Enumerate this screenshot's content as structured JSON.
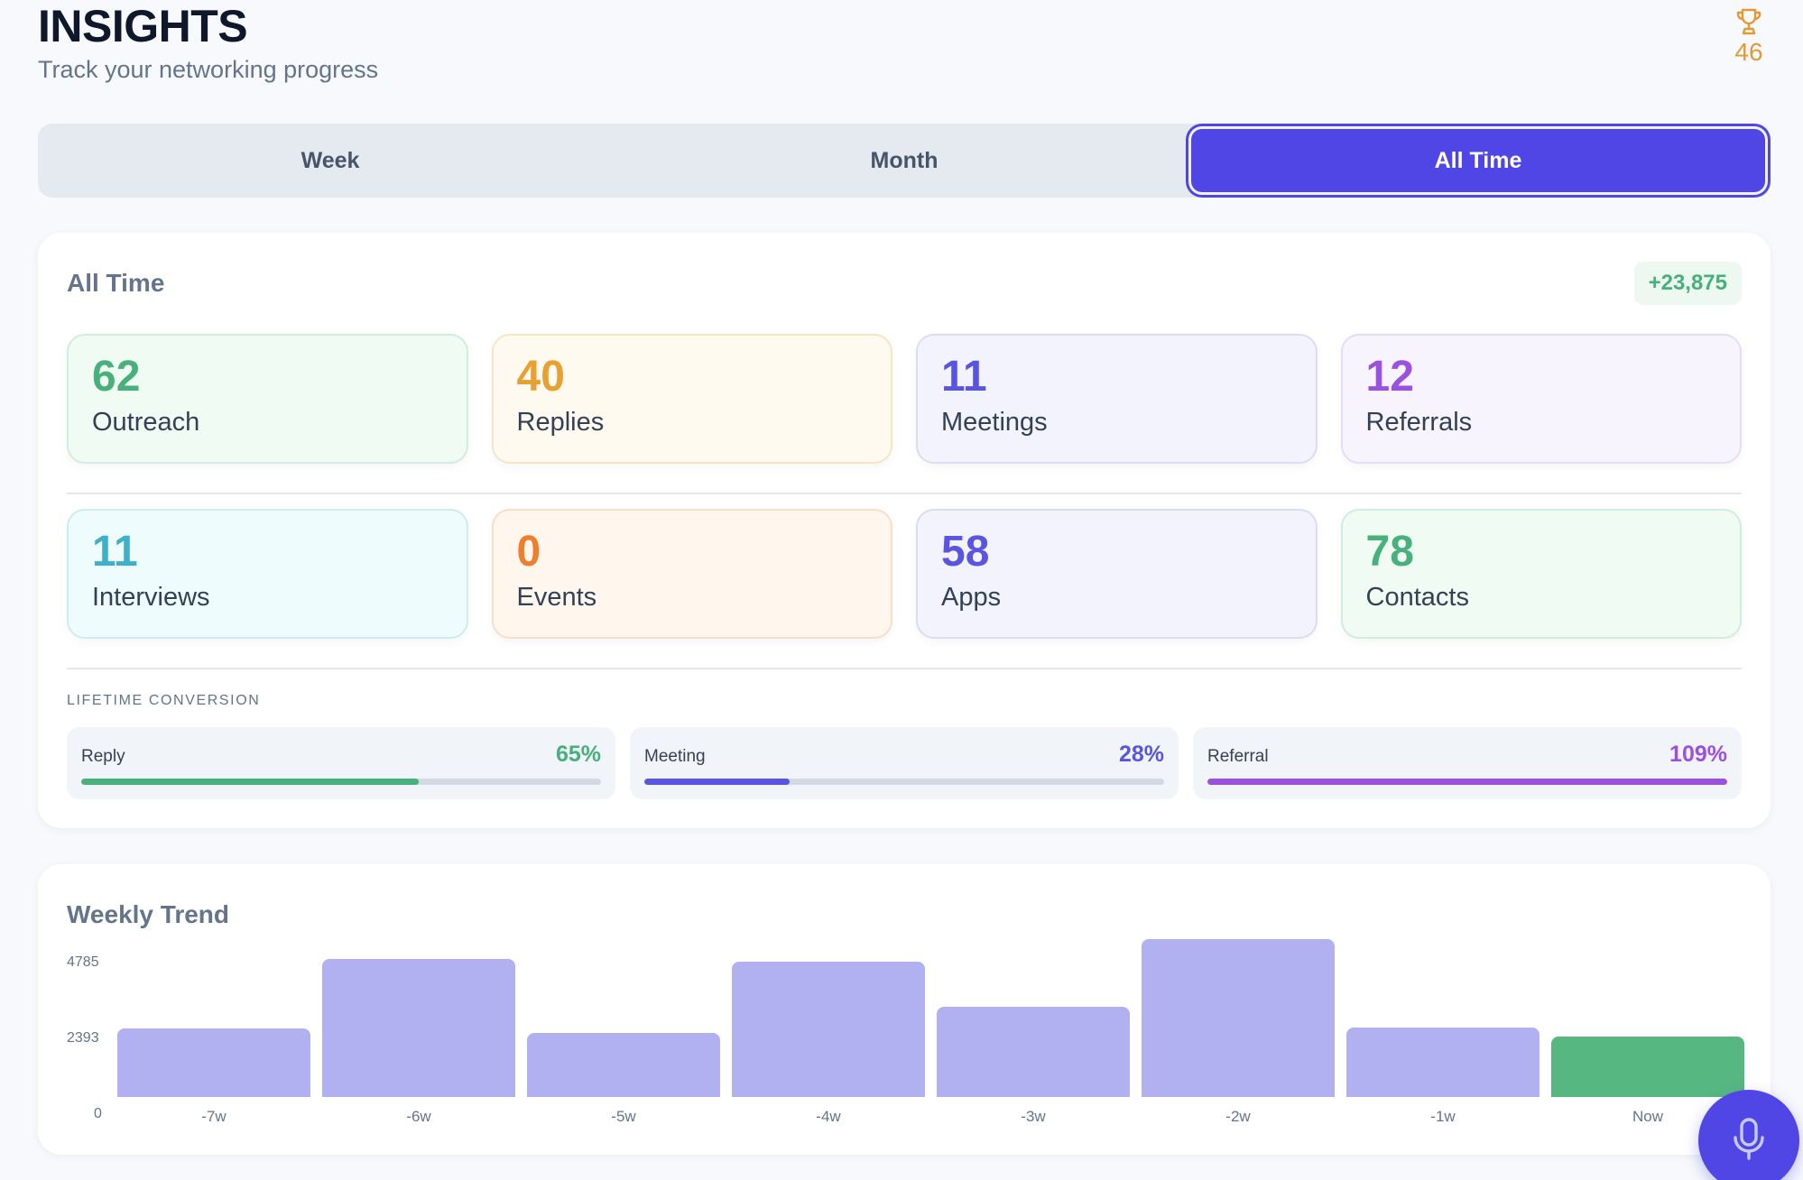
{
  "header": {
    "title": "INSIGHTS",
    "subtitle": "Track your networking progress",
    "trophy_count": "46"
  },
  "tabs": [
    {
      "label": "Week",
      "active": false
    },
    {
      "label": "Month",
      "active": false
    },
    {
      "label": "All Time",
      "active": true
    }
  ],
  "summary": {
    "title": "All Time",
    "delta": "+23,875",
    "stats": [
      {
        "value": "62",
        "label": "Outreach",
        "color": "#48b07b",
        "bg": "#f0fbf4",
        "border": "#cfeedd"
      },
      {
        "value": "40",
        "label": "Replies",
        "color": "#e8a032",
        "bg": "#fffaf0",
        "border": "#f7e5c3"
      },
      {
        "value": "11",
        "label": "Meetings",
        "color": "#5a55e0",
        "bg": "#f3f3fe",
        "border": "#dcdcf7"
      },
      {
        "value": "12",
        "label": "Referrals",
        "color": "#9b51e0",
        "bg": "#f8f4fe",
        "border": "#e6dcf7"
      },
      {
        "value": "11",
        "label": "Interviews",
        "color": "#3fb0cc",
        "bg": "#effcfe",
        "border": "#cdedf3"
      },
      {
        "value": "0",
        "label": "Events",
        "color": "#ee7f2d",
        "bg": "#fff6ee",
        "border": "#f7dfc8"
      },
      {
        "value": "58",
        "label": "Apps",
        "color": "#5a55e0",
        "bg": "#f3f3fe",
        "border": "#dcdcf7"
      },
      {
        "value": "78",
        "label": "Contacts",
        "color": "#48b07b",
        "bg": "#f0fbf4",
        "border": "#cfeedd"
      }
    ],
    "conversion_heading": "LIFETIME CONVERSION",
    "conversions": [
      {
        "label": "Reply",
        "pct_text": "65%",
        "value": 65,
        "color": "#48b07b"
      },
      {
        "label": "Meeting",
        "pct_text": "28%",
        "value": 28,
        "color": "#5a55e0"
      },
      {
        "label": "Referral",
        "pct_text": "109%",
        "value": 109,
        "color": "#9b51e0"
      }
    ]
  },
  "chart_data": {
    "type": "bar",
    "title": "Weekly Trend",
    "categories": [
      "-7w",
      "-6w",
      "-5w",
      "-4w",
      "-3w",
      "-2w",
      "-1w",
      "Now"
    ],
    "values": [
      2260,
      4580,
      2110,
      4480,
      2990,
      5230,
      2290,
      1990
    ],
    "y_ticks": [
      "4785",
      "2393",
      "0"
    ],
    "ylim": [
      0,
      4785
    ],
    "colors": {
      "default": "#b1b1f2",
      "current": "#56b780"
    }
  }
}
